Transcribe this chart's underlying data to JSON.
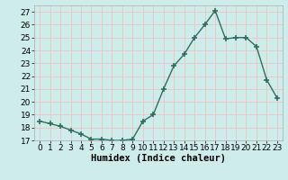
{
  "x": [
    0,
    1,
    2,
    3,
    4,
    5,
    6,
    7,
    8,
    9,
    10,
    11,
    12,
    13,
    14,
    15,
    16,
    17,
    18,
    19,
    20,
    21,
    22,
    23
  ],
  "y": [
    18.5,
    18.3,
    18.1,
    17.8,
    17.5,
    17.1,
    17.1,
    17.0,
    17.0,
    17.1,
    18.5,
    19.0,
    21.0,
    22.8,
    23.7,
    25.0,
    26.0,
    27.1,
    24.9,
    25.0,
    25.0,
    24.3,
    21.7,
    20.3
  ],
  "line_color": "#2d6e5e",
  "marker": "+",
  "marker_size": 4,
  "marker_linewidth": 1.2,
  "xlabel": "Humidex (Indice chaleur)",
  "xlim": [
    -0.5,
    23.5
  ],
  "ylim": [
    17,
    27.5
  ],
  "yticks": [
    17,
    18,
    19,
    20,
    21,
    22,
    23,
    24,
    25,
    26,
    27
  ],
  "xticks": [
    0,
    1,
    2,
    3,
    4,
    5,
    6,
    7,
    8,
    9,
    10,
    11,
    12,
    13,
    14,
    15,
    16,
    17,
    18,
    19,
    20,
    21,
    22,
    23
  ],
  "bg_color": "#ceecea",
  "grid_color": "#e8c8c8",
  "tick_label_fontsize": 6.5,
  "xlabel_fontsize": 7.5,
  "linewidth": 1.0
}
